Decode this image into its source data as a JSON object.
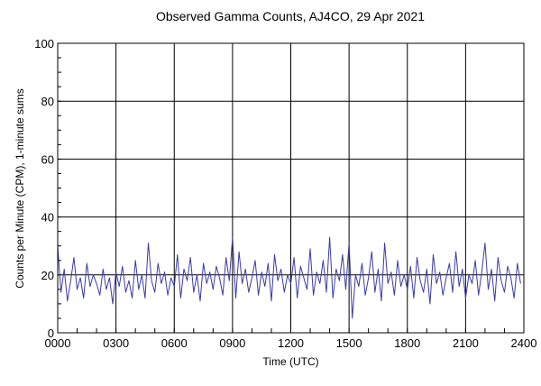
{
  "chart_data": {
    "type": "line",
    "title": "Observed Gamma Counts, AJ4CO, 29 Apr 2021",
    "xlabel": "Time (UTC)",
    "ylabel": "Counts per Minute (CPM), 1-minute sums",
    "xlim": [
      0,
      2400
    ],
    "ylim": [
      0,
      100
    ],
    "grid": true,
    "x_ticks": [
      "0000",
      "0300",
      "0600",
      "0900",
      "1200",
      "1500",
      "1800",
      "2100",
      "2400"
    ],
    "y_ticks": [
      "0",
      "20",
      "40",
      "60",
      "80",
      "100"
    ],
    "line_color": "#3b3ba3",
    "series": [
      {
        "x_interval_minutes": 10,
        "values": [
          30,
          14,
          22,
          11,
          18,
          26,
          15,
          19,
          12,
          24,
          16,
          20,
          17,
          13,
          22,
          15,
          19,
          10,
          21,
          16,
          23,
          14,
          18,
          12,
          25,
          15,
          20,
          12,
          31,
          18,
          14,
          24,
          17,
          21,
          13,
          19,
          16,
          27,
          12,
          22,
          18,
          26,
          14,
          20,
          11,
          24,
          17,
          21,
          15,
          23,
          19,
          13,
          26,
          18,
          33,
          12,
          28,
          17,
          22,
          14,
          19,
          25,
          13,
          21,
          16,
          24,
          11,
          27,
          18,
          22,
          14,
          20,
          17,
          26,
          12,
          23,
          19,
          15,
          29,
          13,
          21,
          17,
          25,
          14,
          33,
          12,
          22,
          18,
          27,
          15,
          31,
          5,
          20,
          16,
          24,
          13,
          19,
          28,
          14,
          22,
          11,
          31,
          17,
          21,
          13,
          25,
          16,
          20,
          15,
          23,
          12,
          26,
          18,
          14,
          22,
          10,
          27,
          17,
          21,
          13,
          19,
          24,
          14,
          28,
          16,
          22,
          12,
          20,
          17,
          25,
          13,
          21,
          31,
          15,
          22,
          11,
          26,
          18,
          14,
          23,
          19,
          12,
          24,
          17
        ]
      }
    ]
  }
}
